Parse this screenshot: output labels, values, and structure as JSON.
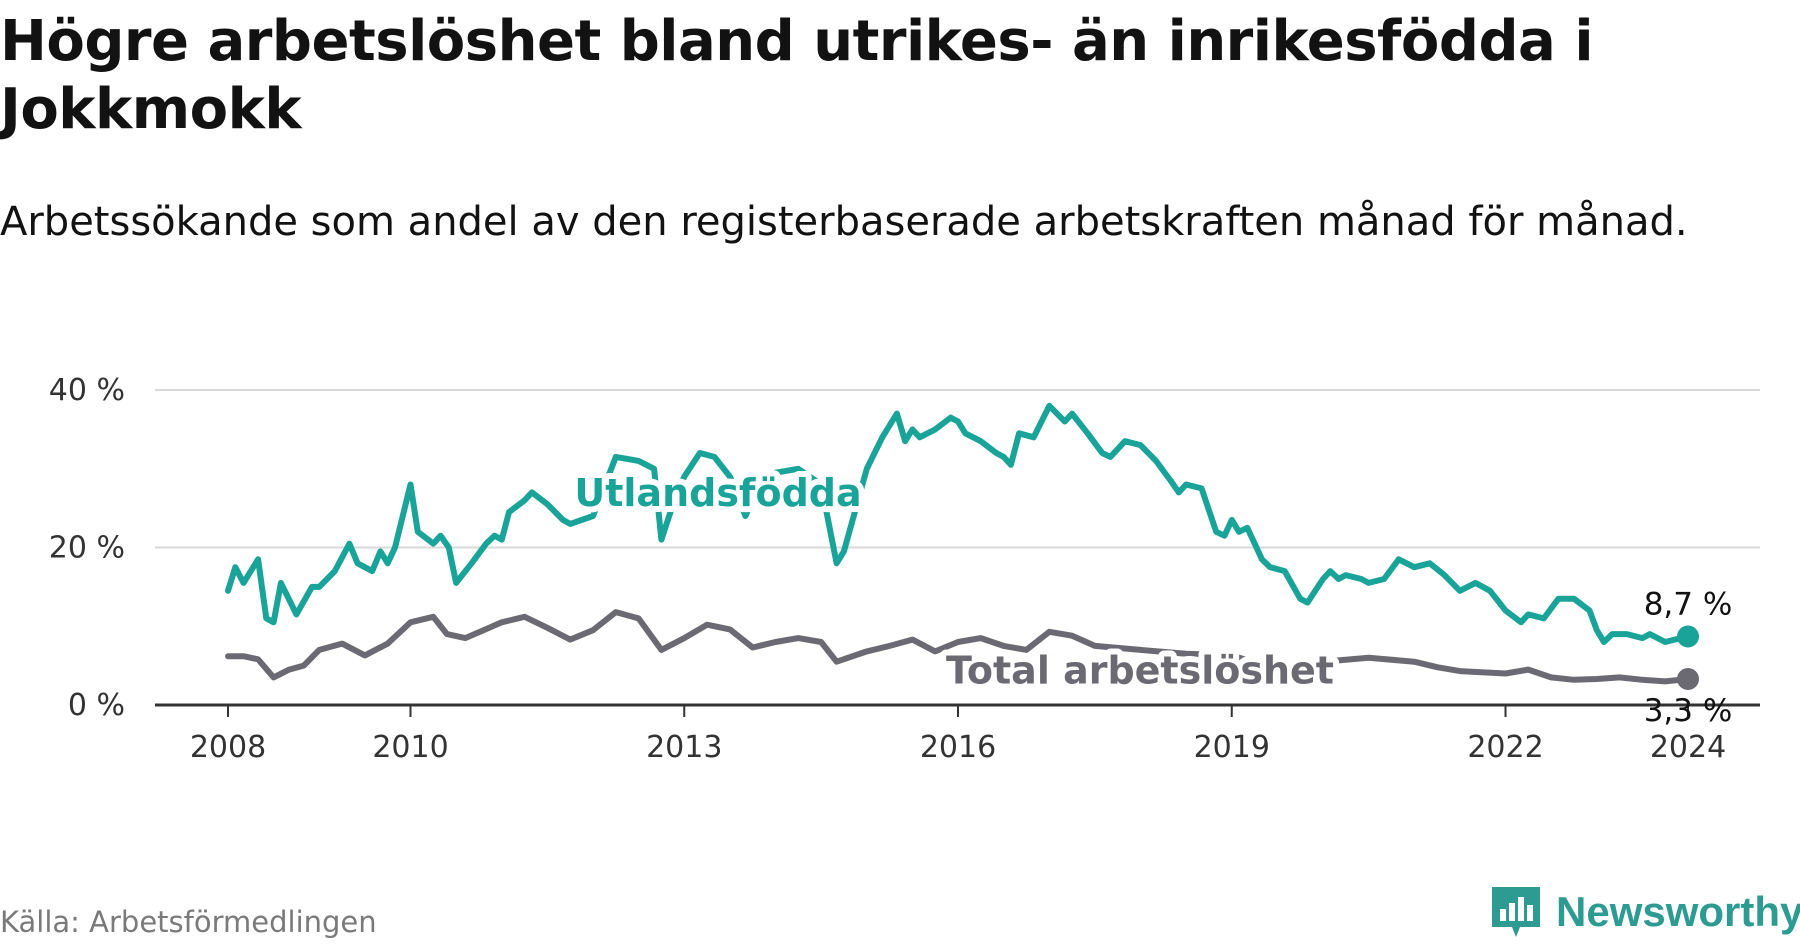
{
  "title": "Högre arbetslöshet bland utrikes- än inrikesfödda i Jokkmokk",
  "subtitle": "Arbetssökande som andel av den registerbaserade arbetskraften månad för månad.",
  "source": "Källa: Arbetsförmedlingen",
  "brand": {
    "name": "Newsworthy",
    "color": "#2d9b92",
    "icon": "bar-chart-icon"
  },
  "chart_data": {
    "type": "line",
    "title": "Högre arbetslöshet bland utrikes- än inrikesfödda i Jokkmokk",
    "xlabel": "",
    "ylabel": "",
    "xlim": [
      2008,
      2024.1
    ],
    "ylim": [
      0,
      40
    ],
    "grid": true,
    "x_ticks": [
      {
        "value": 2008,
        "label": "2008"
      },
      {
        "value": 2010,
        "label": "2010"
      },
      {
        "value": 2013,
        "label": "2013"
      },
      {
        "value": 2016,
        "label": "2016"
      },
      {
        "value": 2019,
        "label": "2019"
      },
      {
        "value": 2022,
        "label": "2022"
      },
      {
        "value": 2024,
        "label": "2024"
      }
    ],
    "y_ticks": [
      {
        "value": 0,
        "label": "0 %"
      },
      {
        "value": 20,
        "label": "20 %"
      },
      {
        "value": 40,
        "label": "40 %"
      }
    ],
    "series": [
      {
        "name": "Total arbetslöshet",
        "color": "#6b6a72",
        "end_label": "3,3 %",
        "points": [
          [
            2008.0,
            6.2
          ],
          [
            2008.17,
            6.2
          ],
          [
            2008.33,
            5.8
          ],
          [
            2008.5,
            3.5
          ],
          [
            2008.67,
            4.5
          ],
          [
            2008.83,
            5.0
          ],
          [
            2009.0,
            7.0
          ],
          [
            2009.25,
            7.8
          ],
          [
            2009.5,
            6.3
          ],
          [
            2009.75,
            7.8
          ],
          [
            2010.0,
            10.5
          ],
          [
            2010.25,
            11.2
          ],
          [
            2010.4,
            9.0
          ],
          [
            2010.6,
            8.5
          ],
          [
            2010.8,
            9.5
          ],
          [
            2011.0,
            10.5
          ],
          [
            2011.25,
            11.2
          ],
          [
            2011.5,
            9.8
          ],
          [
            2011.75,
            8.3
          ],
          [
            2012.0,
            9.5
          ],
          [
            2012.25,
            11.8
          ],
          [
            2012.5,
            11.0
          ],
          [
            2012.75,
            7.0
          ],
          [
            2013.0,
            8.5
          ],
          [
            2013.25,
            10.2
          ],
          [
            2013.5,
            9.6
          ],
          [
            2013.75,
            7.3
          ],
          [
            2014.0,
            8.0
          ],
          [
            2014.25,
            8.5
          ],
          [
            2014.5,
            8.0
          ],
          [
            2014.67,
            5.5
          ],
          [
            2015.0,
            6.8
          ],
          [
            2015.25,
            7.5
          ],
          [
            2015.5,
            8.3
          ],
          [
            2015.75,
            6.8
          ],
          [
            2016.0,
            8.0
          ],
          [
            2016.25,
            8.5
          ],
          [
            2016.5,
            7.5
          ],
          [
            2016.75,
            7.0
          ],
          [
            2017.0,
            9.3
          ],
          [
            2017.25,
            8.8
          ],
          [
            2017.5,
            7.5
          ],
          [
            2018.0,
            7.0
          ],
          [
            2018.5,
            6.5
          ],
          [
            2019.0,
            6.3
          ],
          [
            2019.5,
            4.5
          ],
          [
            2020.0,
            5.5
          ],
          [
            2020.5,
            6.0
          ],
          [
            2021.0,
            5.5
          ],
          [
            2021.25,
            4.8
          ],
          [
            2021.5,
            4.3
          ],
          [
            2022.0,
            4.0
          ],
          [
            2022.25,
            4.5
          ],
          [
            2022.5,
            3.5
          ],
          [
            2022.75,
            3.2
          ],
          [
            2023.0,
            3.3
          ],
          [
            2023.25,
            3.5
          ],
          [
            2023.5,
            3.2
          ],
          [
            2023.75,
            3.0
          ],
          [
            2024.0,
            3.3
          ]
        ]
      },
      {
        "name": "Utlandsfödda",
        "color": "#1aa398",
        "end_label": "8,7 %",
        "points": [
          [
            2008.0,
            14.5
          ],
          [
            2008.08,
            17.5
          ],
          [
            2008.17,
            15.5
          ],
          [
            2008.33,
            18.5
          ],
          [
            2008.42,
            11.0
          ],
          [
            2008.5,
            10.5
          ],
          [
            2008.58,
            15.5
          ],
          [
            2008.75,
            11.5
          ],
          [
            2008.92,
            15.0
          ],
          [
            2009.0,
            15.0
          ],
          [
            2009.17,
            17.0
          ],
          [
            2009.33,
            20.5
          ],
          [
            2009.42,
            18.0
          ],
          [
            2009.58,
            17.0
          ],
          [
            2009.67,
            19.5
          ],
          [
            2009.75,
            18.0
          ],
          [
            2009.83,
            20.0
          ],
          [
            2010.0,
            28.0
          ],
          [
            2010.08,
            22.0
          ],
          [
            2010.25,
            20.5
          ],
          [
            2010.33,
            21.5
          ],
          [
            2010.42,
            20.0
          ],
          [
            2010.5,
            15.5
          ],
          [
            2010.67,
            18.0
          ],
          [
            2010.83,
            20.5
          ],
          [
            2010.92,
            21.5
          ],
          [
            2011.0,
            21.0
          ],
          [
            2011.08,
            24.5
          ],
          [
            2011.25,
            26.0
          ],
          [
            2011.33,
            27.0
          ],
          [
            2011.5,
            25.5
          ],
          [
            2011.67,
            23.5
          ],
          [
            2011.75,
            23.0
          ],
          [
            2012.0,
            24.0
          ],
          [
            2012.25,
            31.5
          ],
          [
            2012.5,
            31.0
          ],
          [
            2012.67,
            30.0
          ],
          [
            2012.75,
            21.0
          ],
          [
            2012.92,
            27.0
          ],
          [
            2013.0,
            29.0
          ],
          [
            2013.17,
            32.0
          ],
          [
            2013.33,
            31.5
          ],
          [
            2013.5,
            29.0
          ],
          [
            2013.67,
            24.0
          ],
          [
            2013.83,
            28.0
          ],
          [
            2014.0,
            29.5
          ],
          [
            2014.25,
            30.0
          ],
          [
            2014.5,
            28.0
          ],
          [
            2014.67,
            18.0
          ],
          [
            2014.75,
            19.5
          ],
          [
            2015.0,
            30.0
          ],
          [
            2015.17,
            34.0
          ],
          [
            2015.33,
            37.0
          ],
          [
            2015.42,
            33.5
          ],
          [
            2015.5,
            35.0
          ],
          [
            2015.58,
            34.0
          ],
          [
            2015.75,
            35.0
          ],
          [
            2015.92,
            36.5
          ],
          [
            2016.0,
            36.0
          ],
          [
            2016.08,
            34.5
          ],
          [
            2016.25,
            33.5
          ],
          [
            2016.42,
            32.0
          ],
          [
            2016.5,
            31.5
          ],
          [
            2016.58,
            30.5
          ],
          [
            2016.67,
            34.5
          ],
          [
            2016.83,
            34.0
          ],
          [
            2017.0,
            38.0
          ],
          [
            2017.17,
            36.0
          ],
          [
            2017.25,
            37.0
          ],
          [
            2017.42,
            34.5
          ],
          [
            2017.58,
            32.0
          ],
          [
            2017.67,
            31.5
          ],
          [
            2017.83,
            33.5
          ],
          [
            2018.0,
            33.0
          ],
          [
            2018.17,
            31.0
          ],
          [
            2018.33,
            28.5
          ],
          [
            2018.42,
            27.0
          ],
          [
            2018.5,
            28.0
          ],
          [
            2018.67,
            27.5
          ],
          [
            2018.83,
            22.0
          ],
          [
            2018.92,
            21.5
          ],
          [
            2019.0,
            23.5
          ],
          [
            2019.08,
            22.0
          ],
          [
            2019.17,
            22.5
          ],
          [
            2019.33,
            18.5
          ],
          [
            2019.42,
            17.5
          ],
          [
            2019.58,
            17.0
          ],
          [
            2019.75,
            13.5
          ],
          [
            2019.83,
            13.0
          ],
          [
            2020.0,
            16.0
          ],
          [
            2020.08,
            17.0
          ],
          [
            2020.17,
            16.0
          ],
          [
            2020.25,
            16.5
          ],
          [
            2020.42,
            16.0
          ],
          [
            2020.5,
            15.5
          ],
          [
            2020.67,
            16.0
          ],
          [
            2020.83,
            18.5
          ],
          [
            2021.0,
            17.5
          ],
          [
            2021.17,
            18.0
          ],
          [
            2021.33,
            16.5
          ],
          [
            2021.5,
            14.5
          ],
          [
            2021.67,
            15.5
          ],
          [
            2021.83,
            14.5
          ],
          [
            2022.0,
            12.0
          ],
          [
            2022.17,
            10.5
          ],
          [
            2022.25,
            11.5
          ],
          [
            2022.42,
            11.0
          ],
          [
            2022.58,
            13.5
          ],
          [
            2022.75,
            13.5
          ],
          [
            2022.92,
            12.0
          ],
          [
            2023.0,
            9.5
          ],
          [
            2023.08,
            8.0
          ],
          [
            2023.17,
            9.0
          ],
          [
            2023.33,
            9.0
          ],
          [
            2023.5,
            8.5
          ],
          [
            2023.58,
            9.0
          ],
          [
            2023.75,
            8.0
          ],
          [
            2023.92,
            8.5
          ],
          [
            2024.0,
            8.7
          ]
        ]
      }
    ]
  }
}
